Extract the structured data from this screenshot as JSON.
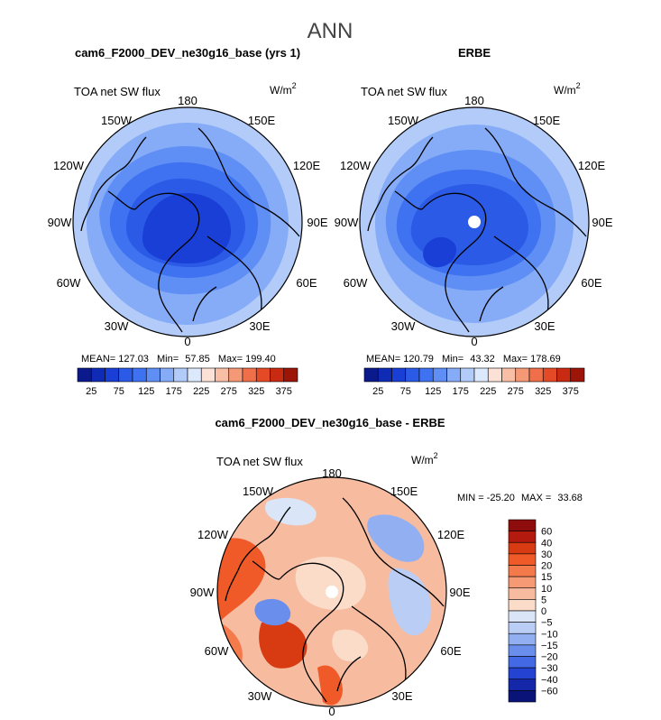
{
  "page_title": "ANN",
  "chart_data": [
    {
      "type": "heatmap",
      "projection": "polar-stereographic-north",
      "title": "cam6_F2000_DEV_ne30g16_base (yrs 1)",
      "variable": "TOA net SW flux",
      "units_base": "W/m",
      "units_exp": "2",
      "lon_labels": {
        "top": "180",
        "upper_left": "150W",
        "upper_right": "150E",
        "mid_upper_left": "120W",
        "mid_upper_right": "120E",
        "left": "90W",
        "right": "90E",
        "mid_lower_left": "60W",
        "mid_lower_right": "60E",
        "lower_left": "30W",
        "lower_right": "30E",
        "bottom": "0"
      },
      "stats": {
        "mean_label": "MEAN=",
        "mean": "127.03",
        "min_label": "Min=",
        "min": "57.85",
        "max_label": "Max=",
        "max": "199.40"
      },
      "colorbar": {
        "orientation": "horizontal",
        "levels": [
          25,
          50,
          75,
          100,
          125,
          150,
          175,
          200,
          225,
          250,
          275,
          300,
          325,
          350,
          375
        ],
        "tick_labels": [
          "25",
          "75",
          "125",
          "175",
          "225",
          "275",
          "325",
          "375"
        ],
        "colors": [
          "#0a1a8c",
          "#0f2bb5",
          "#1a3fd6",
          "#2a5ae6",
          "#3f72f0",
          "#5f8ff5",
          "#86acf7",
          "#b2cbf9",
          "#dce8fb",
          "#fbe1d6",
          "#f8bea6",
          "#f49876",
          "#ef6f4a",
          "#e44a26",
          "#c82a12",
          "#9c1508"
        ]
      },
      "field_summary": {
        "pole_value": 60,
        "ocean_value": 160,
        "outer_value": 185
      }
    },
    {
      "type": "heatmap",
      "projection": "polar-stereographic-north",
      "title": "ERBE",
      "variable": "TOA net SW flux",
      "units_base": "W/m",
      "units_exp": "2",
      "lon_labels": {
        "top": "180",
        "upper_left": "150W",
        "upper_right": "150E",
        "mid_upper_left": "120W",
        "mid_upper_right": "120E",
        "left": "90W",
        "right": "90E",
        "mid_lower_left": "60W",
        "mid_lower_right": "60E",
        "lower_left": "30W",
        "lower_right": "30E",
        "bottom": "0"
      },
      "stats": {
        "mean_label": "MEAN=",
        "mean": "120.79",
        "min_label": "Min=",
        "min": "43.32",
        "max_label": "Max=",
        "max": "178.69"
      },
      "colorbar": {
        "orientation": "horizontal",
        "levels": [
          25,
          50,
          75,
          100,
          125,
          150,
          175,
          200,
          225,
          250,
          275,
          300,
          325,
          350,
          375
        ],
        "tick_labels": [
          "25",
          "75",
          "125",
          "175",
          "225",
          "275",
          "325",
          "375"
        ],
        "colors": [
          "#0a1a8c",
          "#0f2bb5",
          "#1a3fd6",
          "#2a5ae6",
          "#3f72f0",
          "#5f8ff5",
          "#86acf7",
          "#b2cbf9",
          "#dce8fb",
          "#fbe1d6",
          "#f8bea6",
          "#f49876",
          "#ef6f4a",
          "#e44a26",
          "#c82a12",
          "#9c1508"
        ]
      },
      "field_summary": {
        "pole_value": "missing",
        "ocean_value": 150,
        "outer_value": 175
      }
    },
    {
      "type": "heatmap",
      "projection": "polar-stereographic-north",
      "title": "cam6_F2000_DEV_ne30g16_base - ERBE",
      "variable": "TOA net SW flux",
      "units_base": "W/m",
      "units_exp": "2",
      "lon_labels": {
        "top": "180",
        "upper_left": "150W",
        "upper_right": "150E",
        "mid_upper_left": "120W",
        "mid_upper_right": "120E",
        "left": "90W",
        "right": "90E",
        "mid_lower_left": "60W",
        "mid_lower_right": "60E",
        "lower_left": "30W",
        "lower_right": "30E",
        "bottom": "0"
      },
      "stats": {
        "min_label": "MIN =",
        "min": "-25.20",
        "max_label": "MAX =",
        "max": "33.68"
      },
      "colorbar": {
        "orientation": "vertical",
        "levels": [
          -60,
          -40,
          -30,
          -20,
          -15,
          -10,
          -5,
          0,
          5,
          10,
          15,
          20,
          30,
          40,
          60
        ],
        "tick_labels": [
          "60",
          "40",
          "30",
          "20",
          "15",
          "10",
          "5",
          "0",
          "−5",
          "−10",
          "−15",
          "−20",
          "−30",
          "−40",
          "−60"
        ],
        "colors": [
          "#8e0c0c",
          "#b41a0e",
          "#d83a12",
          "#ef5a28",
          "#f47a4c",
          "#f59a74",
          "#f7bca0",
          "#fadcc9",
          "#dae6f7",
          "#b9cdf5",
          "#92b0f1",
          "#6a8eec",
          "#4369e4",
          "#2443d3",
          "#1427a8",
          "#0a1478"
        ]
      },
      "field_summary": {
        "pole_value": "missing",
        "typical_value": 5
      }
    }
  ]
}
